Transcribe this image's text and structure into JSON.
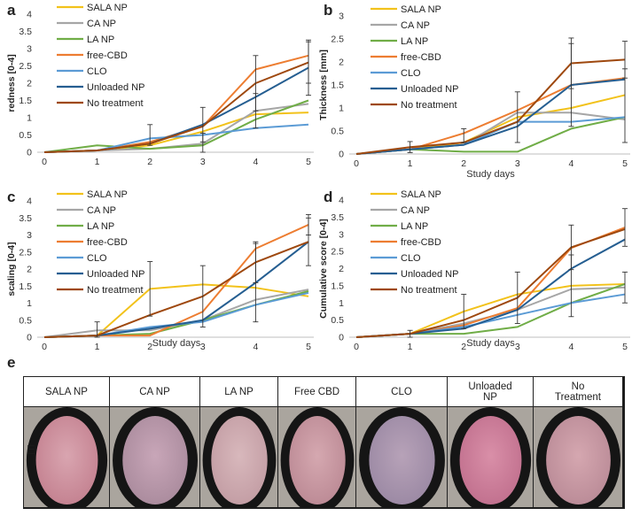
{
  "colors": {
    "SALA NP": "#f2c21b",
    "CA NP": "#a6a6a6",
    "LA NP": "#70ad47",
    "free-CBD": "#ed7d31",
    "CLO": "#5b9bd5",
    "Unloaded NP": "#255e91",
    "No treatment": "#9e480e"
  },
  "legend": [
    "SALA NP",
    "CA NP",
    "LA NP",
    "free-CBD",
    "CLO",
    "Unloaded NP",
    "No treatment"
  ],
  "chart_data": [
    {
      "id": "a",
      "panel_label": "a",
      "type": "line",
      "xlabel": "",
      "ylabel": "redness [0-4]",
      "x": [
        0,
        1,
        2,
        3,
        4,
        5
      ],
      "ylim": [
        0,
        4
      ],
      "yticks": [
        0,
        0.5,
        1,
        1.5,
        2,
        2.5,
        3,
        3.5,
        4
      ],
      "series": [
        {
          "name": "SALA NP",
          "values": [
            0,
            0.05,
            0.2,
            0.6,
            1.1,
            1.15
          ]
        },
        {
          "name": "CA NP",
          "values": [
            0,
            0.05,
            0.1,
            0.25,
            1.2,
            1.4
          ]
        },
        {
          "name": "LA NP",
          "values": [
            0,
            0.2,
            0.1,
            0.2,
            0.95,
            1.5
          ]
        },
        {
          "name": "free-CBD",
          "values": [
            0,
            0.05,
            0.3,
            0.75,
            2.4,
            2.8
          ]
        },
        {
          "name": "CLO",
          "values": [
            0,
            0.05,
            0.4,
            0.5,
            0.7,
            0.8
          ]
        },
        {
          "name": "Unloaded NP",
          "values": [
            0,
            0.05,
            0.25,
            0.8,
            1.6,
            2.45
          ]
        },
        {
          "name": "No treatment",
          "values": [
            0,
            0.05,
            0.25,
            0.75,
            2.0,
            2.6
          ]
        }
      ],
      "errors": [
        {
          "x": 2,
          "y": 0.5,
          "err": 0.3
        },
        {
          "x": 3,
          "y": 0.8,
          "err": 0.5
        },
        {
          "x": 4,
          "y": 2.0,
          "err": 0.8
        },
        {
          "x": 5,
          "y": 2.6,
          "err": 0.6
        },
        {
          "x": 5,
          "y": 2.45,
          "err": 0.8
        },
        {
          "x": 3,
          "y": 0.25,
          "err": 0.3
        },
        {
          "x": 4,
          "y": 1.2,
          "err": 0.5
        }
      ]
    },
    {
      "id": "b",
      "panel_label": "b",
      "type": "line",
      "xlabel": "Study days",
      "ylabel": "Thickness [mm]",
      "x": [
        0,
        1,
        2,
        3,
        4,
        5
      ],
      "ylim": [
        0,
        3
      ],
      "yticks": [
        0,
        0.5,
        1,
        1.5,
        2,
        2.5,
        3
      ],
      "series": [
        {
          "name": "SALA NP",
          "values": [
            0,
            0.1,
            0.25,
            0.8,
            1.0,
            1.28
          ]
        },
        {
          "name": "CA NP",
          "values": [
            0,
            0.1,
            0.2,
            0.9,
            0.9,
            0.75
          ]
        },
        {
          "name": "LA NP",
          "values": [
            0,
            0.1,
            0.05,
            0.05,
            0.55,
            0.8
          ]
        },
        {
          "name": "free-CBD",
          "values": [
            0,
            0.1,
            0.45,
            0.95,
            1.5,
            1.65
          ]
        },
        {
          "name": "CLO",
          "values": [
            0,
            0.1,
            0.2,
            0.7,
            0.7,
            0.8
          ]
        },
        {
          "name": "Unloaded NP",
          "values": [
            0,
            0.1,
            0.2,
            0.6,
            1.5,
            1.62
          ]
        },
        {
          "name": "No treatment",
          "values": [
            0,
            0.15,
            0.25,
            0.7,
            1.97,
            2.05
          ]
        }
      ],
      "errors": [
        {
          "x": 1,
          "y": 0.15,
          "err": 0.12
        },
        {
          "x": 2,
          "y": 0.4,
          "err": 0.15
        },
        {
          "x": 3,
          "y": 0.8,
          "err": 0.55
        },
        {
          "x": 4,
          "y": 1.97,
          "err": 0.55
        },
        {
          "x": 4,
          "y": 1.5,
          "err": 0.9
        },
        {
          "x": 5,
          "y": 2.05,
          "err": 0.4
        },
        {
          "x": 5,
          "y": 1.05,
          "err": 0.8
        }
      ]
    },
    {
      "id": "c",
      "panel_label": "c",
      "type": "line",
      "xlabel": "Study days",
      "ylabel": "scaling [0-4]",
      "x": [
        0,
        1,
        2,
        3,
        4,
        5
      ],
      "ylim": [
        0,
        4
      ],
      "yticks": [
        0,
        0.5,
        1,
        1.5,
        2,
        2.5,
        3,
        3.5,
        4
      ],
      "series": [
        {
          "name": "SALA NP",
          "values": [
            0,
            0.05,
            1.42,
            1.55,
            1.45,
            1.2
          ]
        },
        {
          "name": "CA NP",
          "values": [
            0,
            0.2,
            0.2,
            0.5,
            1.1,
            1.4
          ]
        },
        {
          "name": "LA NP",
          "values": [
            0,
            0.05,
            0.1,
            0.5,
            0.95,
            1.35
          ]
        },
        {
          "name": "free-CBD",
          "values": [
            0,
            0.05,
            0.05,
            0.75,
            2.6,
            3.3
          ]
        },
        {
          "name": "CLO",
          "values": [
            0,
            0.05,
            0.3,
            0.45,
            0.95,
            1.3
          ]
        },
        {
          "name": "Unloaded NP",
          "values": [
            0,
            0.05,
            0.25,
            0.5,
            1.6,
            2.8
          ]
        },
        {
          "name": "No treatment",
          "values": [
            0,
            0.05,
            0.65,
            1.2,
            2.2,
            2.8
          ]
        }
      ],
      "errors": [
        {
          "x": 1,
          "y": 0.2,
          "err": 0.25
        },
        {
          "x": 2,
          "y": 1.42,
          "err": 0.8
        },
        {
          "x": 3,
          "y": 1.2,
          "err": 0.9
        },
        {
          "x": 4,
          "y": 1.6,
          "err": 1.15
        },
        {
          "x": 4,
          "y": 2.2,
          "err": 0.6
        },
        {
          "x": 5,
          "y": 3.3,
          "err": 0.3
        },
        {
          "x": 5,
          "y": 2.8,
          "err": 0.7
        }
      ]
    },
    {
      "id": "d",
      "panel_label": "d",
      "type": "line",
      "xlabel": "Study days",
      "ylabel": "Cumulative score  [0-4]",
      "x": [
        0,
        1,
        2,
        3,
        4,
        5
      ],
      "ylim": [
        0,
        4
      ],
      "yticks": [
        0,
        0.5,
        1,
        1.5,
        2,
        2.5,
        3,
        3.5,
        4
      ],
      "series": [
        {
          "name": "SALA NP",
          "values": [
            0,
            0.1,
            0.75,
            1.25,
            1.5,
            1.55
          ]
        },
        {
          "name": "CA NP",
          "values": [
            0,
            0.1,
            0.4,
            0.8,
            1.4,
            1.45
          ]
        },
        {
          "name": "LA NP",
          "values": [
            0,
            0.1,
            0.1,
            0.3,
            1.0,
            1.55
          ]
        },
        {
          "name": "free-CBD",
          "values": [
            0,
            0.1,
            0.35,
            0.85,
            2.6,
            3.2
          ]
        },
        {
          "name": "CLO",
          "values": [
            0,
            0.1,
            0.3,
            0.65,
            1.0,
            1.25
          ]
        },
        {
          "name": "Unloaded NP",
          "values": [
            0,
            0.1,
            0.25,
            0.8,
            2.0,
            2.85
          ]
        },
        {
          "name": "No treatment",
          "values": [
            0,
            0.1,
            0.5,
            1.15,
            2.62,
            3.15
          ]
        }
      ],
      "errors": [
        {
          "x": 1,
          "y": 0.1,
          "err": 0.1
        },
        {
          "x": 2,
          "y": 0.75,
          "err": 0.5
        },
        {
          "x": 3,
          "y": 1.15,
          "err": 0.75
        },
        {
          "x": 4,
          "y": 2.62,
          "err": 0.65
        },
        {
          "x": 4,
          "y": 1.5,
          "err": 0.9
        },
        {
          "x": 5,
          "y": 3.2,
          "err": 0.55
        },
        {
          "x": 5,
          "y": 1.45,
          "err": 0.45
        }
      ]
    }
  ],
  "photos": {
    "panel_label": "e",
    "labels": [
      "SALA NP",
      "CA NP",
      "LA NP",
      "Free CBD",
      "CLO",
      "Unloaded\nNP",
      "No\nTreatment"
    ],
    "inset_letter": "E"
  }
}
